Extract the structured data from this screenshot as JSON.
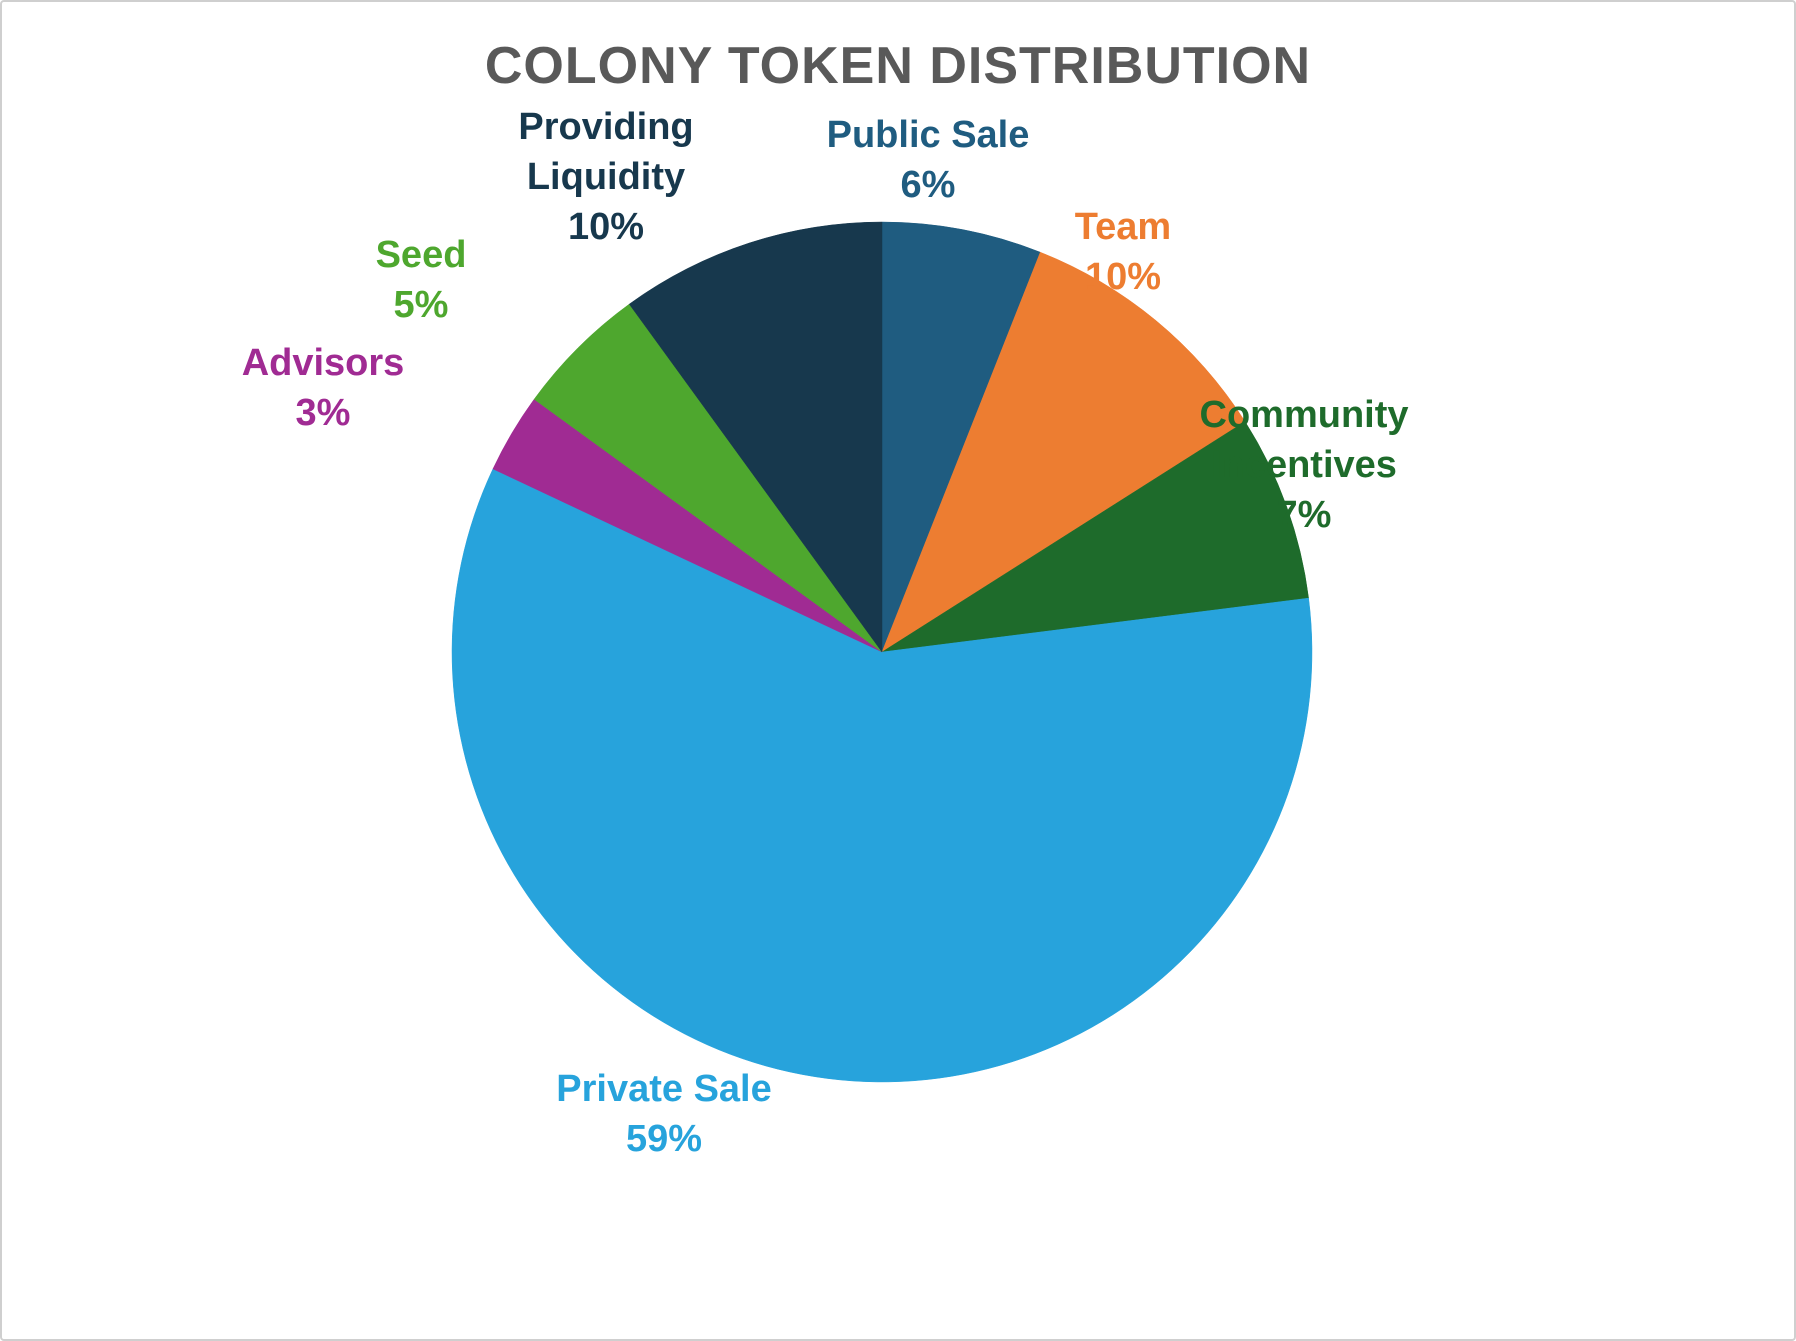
{
  "title": "COLONY TOKEN DISTRIBUTION",
  "chart_data": {
    "type": "pie",
    "title": "COLONY TOKEN DISTRIBUTION",
    "total": 100,
    "start_angle_deg": 0,
    "direction": "clockwise",
    "legend": "none",
    "slices": [
      {
        "label": "Public Sale",
        "value": 6,
        "color": "#1F5C80",
        "label_lines": [
          "Public Sale"
        ]
      },
      {
        "label": "Team",
        "value": 10,
        "color": "#ED7D31",
        "label_lines": [
          "Team"
        ]
      },
      {
        "label": "Community Incentives",
        "value": 7,
        "color": "#1E6B2B",
        "label_lines": [
          "Community",
          "Incentives"
        ]
      },
      {
        "label": "Private Sale",
        "value": 59,
        "color": "#27A3DC",
        "label_lines": [
          "Private Sale"
        ]
      },
      {
        "label": "Advisors",
        "value": 3,
        "color": "#A02B93",
        "label_lines": [
          "Advisors"
        ]
      },
      {
        "label": "Seed",
        "value": 5,
        "color": "#4EA72E",
        "label_lines": [
          "Seed"
        ]
      },
      {
        "label": "Providing Liquidity",
        "value": 10,
        "color": "#17384D",
        "label_lines": [
          "Providing",
          "Liquidity"
        ]
      }
    ]
  }
}
